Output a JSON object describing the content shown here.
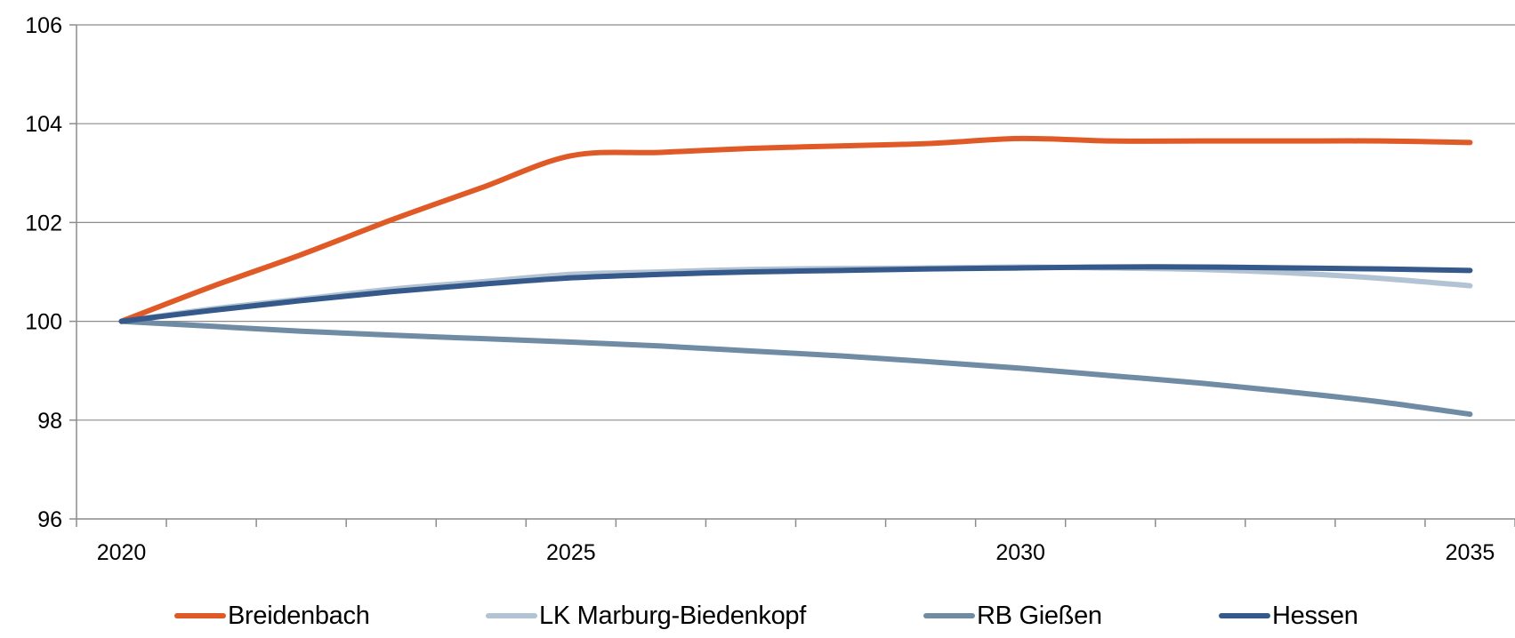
{
  "chart_data": {
    "type": "line",
    "title": "",
    "xlabel": "",
    "ylabel": "",
    "x": [
      2020,
      2021,
      2022,
      2023,
      2024,
      2025,
      2026,
      2027,
      2028,
      2029,
      2030,
      2031,
      2032,
      2033,
      2034,
      2035
    ],
    "xlim": [
      2019.5,
      2035.5
    ],
    "ylim": [
      96,
      106
    ],
    "y_ticks": [
      "96",
      "98",
      "100",
      "102",
      "104",
      "106"
    ],
    "x_tick_labels": [
      {
        "value": 2020,
        "label": "2020"
      },
      {
        "value": 2025,
        "label": "2025"
      },
      {
        "value": 2030,
        "label": "2030"
      },
      {
        "value": 2035,
        "label": "2035"
      }
    ],
    "grid": "horizontal",
    "legend_position": "bottom",
    "series": [
      {
        "name": "Breidenbach",
        "color": "#e05a27",
        "values": [
          100.0,
          100.7,
          101.35,
          102.05,
          102.7,
          103.35,
          103.42,
          103.5,
          103.55,
          103.6,
          103.7,
          103.65,
          103.65,
          103.65,
          103.65,
          103.62
        ]
      },
      {
        "name": "LK Marburg-Biedenkopf",
        "color": "#b2c3d3",
        "values": [
          100.0,
          100.25,
          100.45,
          100.65,
          100.8,
          100.95,
          101.0,
          101.05,
          101.07,
          101.08,
          101.1,
          101.08,
          101.05,
          100.98,
          100.87,
          100.72
        ]
      },
      {
        "name": "RB Gießen",
        "color": "#6f8ca4",
        "values": [
          100.0,
          99.9,
          99.8,
          99.72,
          99.65,
          99.58,
          99.5,
          99.4,
          99.3,
          99.18,
          99.05,
          98.9,
          98.75,
          98.57,
          98.37,
          98.12
        ]
      },
      {
        "name": "Hessen",
        "color": "#35598a",
        "values": [
          100.0,
          100.22,
          100.42,
          100.6,
          100.75,
          100.88,
          100.95,
          101.0,
          101.03,
          101.06,
          101.08,
          101.1,
          101.1,
          101.08,
          101.06,
          101.03
        ]
      }
    ]
  }
}
